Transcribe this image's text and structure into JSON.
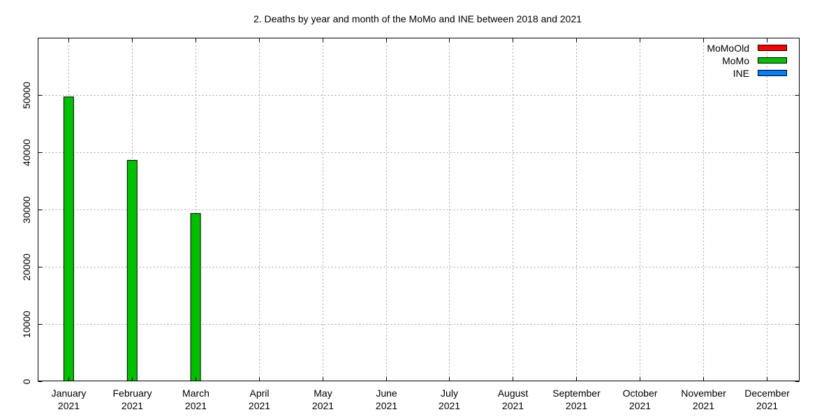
{
  "chart_data": {
    "type": "bar",
    "title": "2. Deaths by year and month of the MoMo and INE between 2018 and 2021",
    "xlabel": "",
    "ylabel": "",
    "categories": [
      [
        "January",
        "2021"
      ],
      [
        "February",
        "2021"
      ],
      [
        "March",
        "2021"
      ],
      [
        "April",
        "2021"
      ],
      [
        "May",
        "2021"
      ],
      [
        "June",
        "2021"
      ],
      [
        "July",
        "2021"
      ],
      [
        "August",
        "2021"
      ],
      [
        "September",
        "2021"
      ],
      [
        "October",
        "2021"
      ],
      [
        "November",
        "2021"
      ],
      [
        "December",
        "2021"
      ]
    ],
    "series": [
      {
        "name": "MoMoOld",
        "color": "#ff0000",
        "values": [
          null,
          null,
          null,
          null,
          null,
          null,
          null,
          null,
          null,
          null,
          null,
          null
        ]
      },
      {
        "name": "MoMo",
        "color": "#00c000",
        "values": [
          49700,
          38600,
          29300,
          null,
          null,
          null,
          null,
          null,
          null,
          null,
          null,
          null
        ]
      },
      {
        "name": "INE",
        "color": "#0080ff",
        "values": [
          null,
          null,
          null,
          null,
          null,
          null,
          null,
          null,
          null,
          null,
          null,
          null
        ]
      }
    ],
    "ylim": [
      0,
      60000
    ],
    "yticks": [
      0,
      10000,
      20000,
      30000,
      40000,
      50000
    ],
    "grid": true,
    "legend_position": "top-right"
  }
}
